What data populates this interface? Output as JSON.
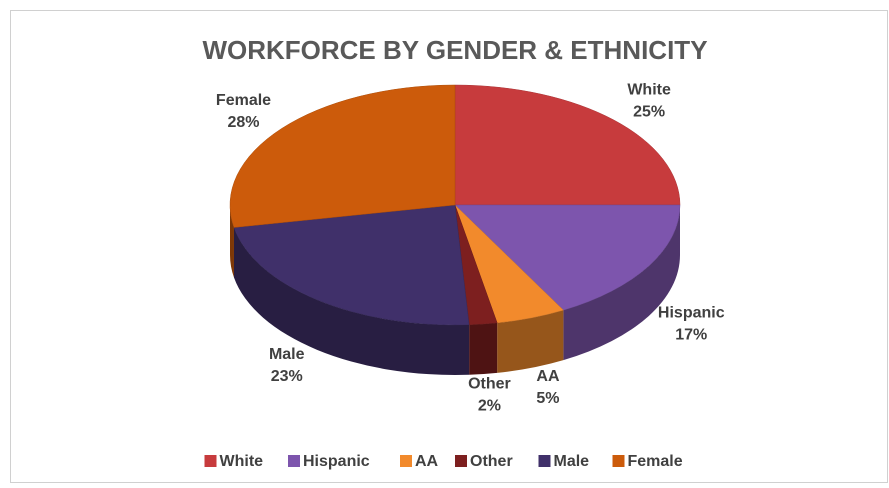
{
  "chart_data": {
    "type": "pie",
    "title": "WORKFORCE BY GENDER & ETHNICITY",
    "categories": [
      "White",
      "Hispanic",
      "AA",
      "Other",
      "Male",
      "Female"
    ],
    "values": [
      25,
      17,
      5,
      2,
      23,
      28
    ],
    "value_labels": [
      "25%",
      "17%",
      "5%",
      "2%",
      "23%",
      "28%"
    ],
    "colors": [
      "#c73b3d",
      "#7d55ad",
      "#f28a2c",
      "#7d1f1f",
      "#40306a",
      "#cc5b0b"
    ],
    "legend": "bottom"
  }
}
